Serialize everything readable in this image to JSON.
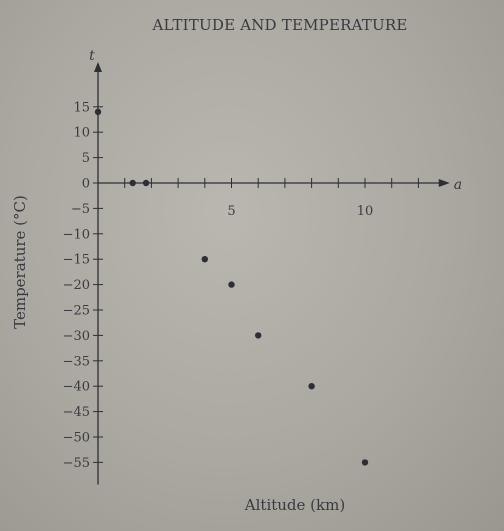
{
  "chart_data": {
    "type": "scatter",
    "title": "ALTITUDE AND TEMPERATURE",
    "xlabel": "Altitude (km)",
    "ylabel": "Temperature (°C)",
    "x_axis_letter": "a",
    "y_axis_letter": "t",
    "xlim": [
      0,
      12.5
    ],
    "ylim": [
      -57,
      18
    ],
    "x_ticks": [
      5,
      10
    ],
    "x_minor_step": 1,
    "y_ticks": [
      15,
      10,
      5,
      0,
      -5,
      -10,
      -15,
      -20,
      -25,
      -30,
      -35,
      -40,
      -45,
      -50,
      -55
    ],
    "y_tick_labels": [
      "15",
      "10",
      "5",
      "0",
      "−5",
      "−10",
      "−15",
      "−20",
      "−25",
      "−30",
      "−35",
      "−40",
      "−45",
      "−50",
      "−55"
    ],
    "x_tick_labels": [
      "5",
      "10"
    ],
    "points": [
      {
        "x": 0,
        "y": 14
      },
      {
        "x": 1.3,
        "y": 0
      },
      {
        "x": 1.8,
        "y": 0
      },
      {
        "x": 4,
        "y": -15
      },
      {
        "x": 5,
        "y": -20
      },
      {
        "x": 6,
        "y": -30
      },
      {
        "x": 8,
        "y": -40
      },
      {
        "x": 10,
        "y": -55
      }
    ],
    "grid": false,
    "colors": {
      "ink": "#2e2e36",
      "paper": "#aaa8a0"
    }
  }
}
